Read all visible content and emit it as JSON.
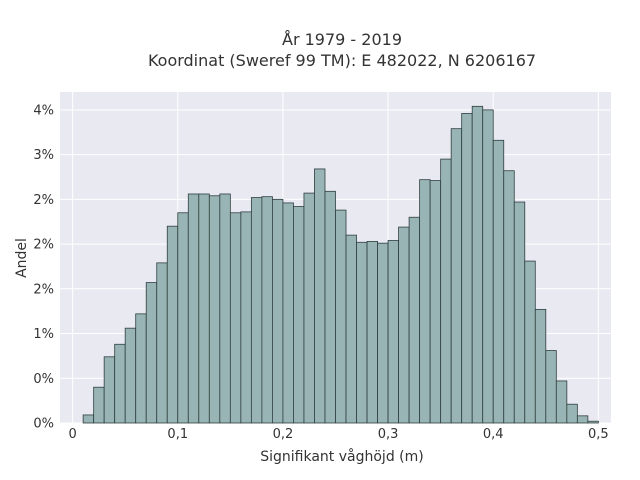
{
  "chart_data": {
    "type": "bar",
    "title": "År 1979 - 2019",
    "subtitle": "Koordinat (Sweref 99 TM): E 482022, N 6206167",
    "xlabel": "Signifikant våghöjd (m)",
    "ylabel": "Andel",
    "x_ticks": [
      "0",
      "0,1",
      "0,2",
      "0,3",
      "0,4",
      "0,5"
    ],
    "x_tick_values": [
      0,
      0.1,
      0.2,
      0.3,
      0.4,
      0.5
    ],
    "y_ticks": [
      "0%",
      "0%",
      "1%",
      "2%",
      "2%",
      "2%",
      "3%",
      "4%"
    ],
    "y_tick_values": [
      0,
      0.5,
      1.0,
      1.5,
      2.0,
      2.5,
      3.0,
      3.5
    ],
    "xlim": [
      -0.012,
      0.512
    ],
    "ylim": [
      0,
      3.7
    ],
    "grid": true,
    "bin_width": 0.01,
    "bin_starts": [
      0.01,
      0.02,
      0.03,
      0.04,
      0.05,
      0.06,
      0.07,
      0.08,
      0.09,
      0.1,
      0.11,
      0.12,
      0.13,
      0.14,
      0.15,
      0.16,
      0.17,
      0.18,
      0.19,
      0.2,
      0.21,
      0.22,
      0.23,
      0.24,
      0.25,
      0.26,
      0.27,
      0.28,
      0.29,
      0.3,
      0.31,
      0.32,
      0.33,
      0.34,
      0.35,
      0.36,
      0.37,
      0.38,
      0.39,
      0.4,
      0.41,
      0.42,
      0.43,
      0.44,
      0.45,
      0.46,
      0.47,
      0.48,
      0.49
    ],
    "values": [
      0.09,
      0.4,
      0.74,
      0.88,
      1.06,
      1.22,
      1.57,
      1.79,
      2.2,
      2.35,
      2.56,
      2.56,
      2.54,
      2.56,
      2.35,
      2.36,
      2.52,
      2.53,
      2.5,
      2.46,
      2.42,
      2.57,
      2.84,
      2.59,
      2.38,
      2.1,
      2.02,
      2.03,
      2.01,
      2.04,
      2.19,
      2.3,
      2.72,
      2.71,
      2.95,
      3.29,
      3.46,
      3.54,
      3.5,
      3.16,
      2.82,
      2.47,
      1.81,
      1.27,
      0.81,
      0.47,
      0.21,
      0.08,
      0.02
    ],
    "colors": {
      "bar_fill": "#98b4b4",
      "bar_edge": "#2f3f3f",
      "plot_bg": "#e9e9f1"
    }
  }
}
